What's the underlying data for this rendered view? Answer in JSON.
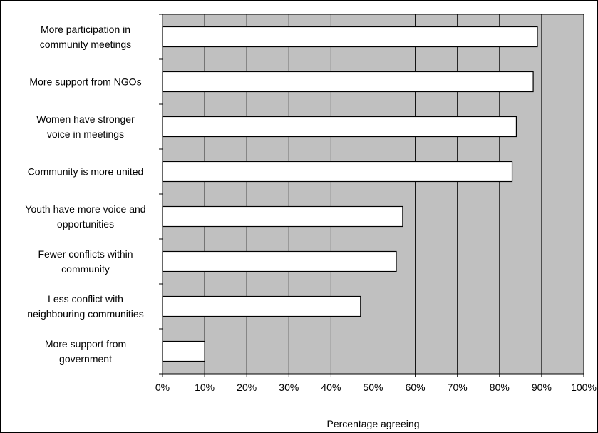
{
  "chart_data": {
    "type": "bar",
    "orientation": "horizontal",
    "categories": [
      [
        "More participation in",
        "community meetings"
      ],
      [
        "More support from NGOs"
      ],
      [
        "Women have stronger",
        "voice in meetings"
      ],
      [
        "Community is more united"
      ],
      [
        "Youth have more voice and",
        "opportunities"
      ],
      [
        "Fewer conflicts within",
        "community"
      ],
      [
        "Less conflict with",
        "neighbouring communities"
      ],
      [
        "More support from",
        "government"
      ]
    ],
    "values": [
      89,
      88,
      84,
      83,
      57,
      55.5,
      47,
      10
    ],
    "xlim": [
      0,
      100
    ],
    "x_ticks": [
      "0%",
      "10%",
      "20%",
      "30%",
      "40%",
      "50%",
      "60%",
      "70%",
      "80%",
      "90%",
      "100%"
    ],
    "xlabel": "Percentage agreeing",
    "title": "",
    "ylabel": "",
    "grid": true,
    "colors": {
      "plot_background": "#c0c0c0",
      "bar_fill": "#ffffff",
      "bar_stroke": "#000000",
      "gridline": "#000000"
    }
  }
}
